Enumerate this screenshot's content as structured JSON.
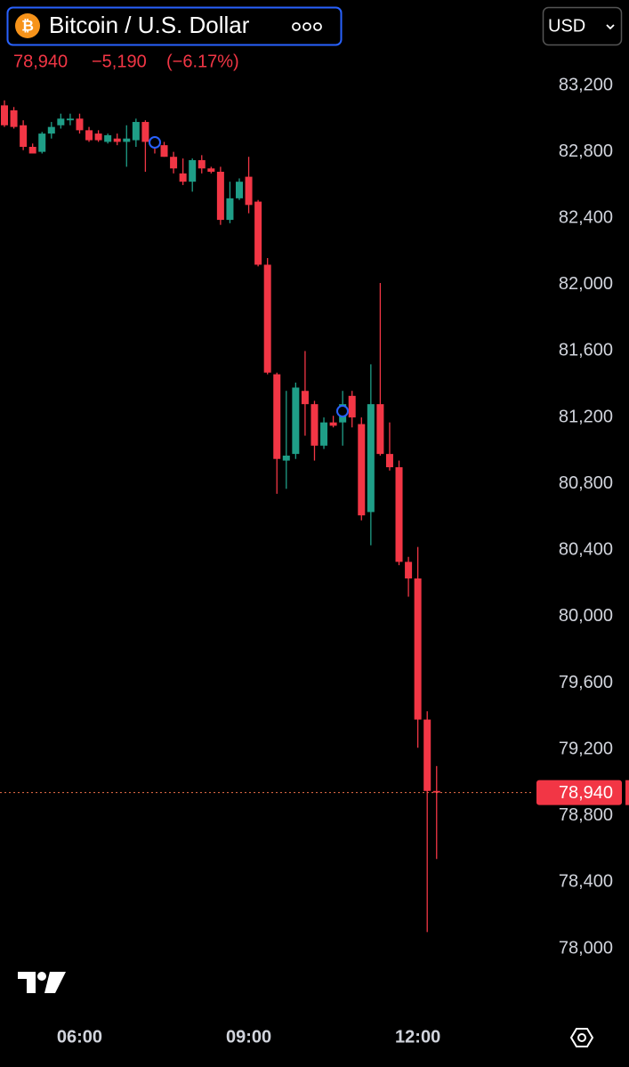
{
  "header": {
    "symbol": "Bitcoin / U.S. Dollar",
    "currency": "USD",
    "price": "78,940",
    "change": "−5,190",
    "change_pct": "(−6.17%)"
  },
  "chart_data": {
    "type": "candlestick",
    "categories": [
      null,
      null,
      null,
      null,
      null,
      null,
      null,
      null,
      "06:00",
      null,
      null,
      null,
      null,
      null,
      null,
      null,
      null,
      null,
      null,
      null,
      null,
      null,
      null,
      null,
      null,
      null,
      "09:00",
      null,
      null,
      null,
      null,
      null,
      null,
      null,
      null,
      null,
      null,
      null,
      null,
      null,
      null,
      null,
      null,
      null,
      "12:00",
      null,
      null
    ],
    "open": [
      83080,
      83050,
      82960,
      82830,
      82800,
      82910,
      82960,
      82990,
      83000,
      82930,
      82910,
      82860,
      82880,
      82860,
      82870,
      82980,
      82860,
      82840,
      82770,
      82670,
      82620,
      82750,
      82700,
      82680,
      82390,
      82520,
      82650,
      82500,
      82120,
      81460,
      80940,
      80980,
      81360,
      81280,
      81030,
      81170,
      81170,
      81330,
      81160,
      80630,
      81280,
      80980,
      80900,
      80330,
      80230,
      79380,
      78950
    ],
    "high": [
      83110,
      83070,
      82990,
      82850,
      82920,
      82980,
      83030,
      83030,
      83030,
      82950,
      82930,
      82910,
      82910,
      82960,
      83000,
      82990,
      82880,
      82860,
      82800,
      82760,
      82760,
      82780,
      82710,
      82710,
      82620,
      82640,
      82770,
      82510,
      82160,
      81470,
      81360,
      81410,
      81600,
      81300,
      81200,
      81210,
      81360,
      81360,
      81200,
      81520,
      82010,
      81170,
      80940,
      80360,
      80420,
      79430,
      79100
    ],
    "low": [
      82950,
      82940,
      82810,
      82790,
      82790,
      82880,
      82940,
      82960,
      82910,
      82860,
      82860,
      82850,
      82840,
      82710,
      82830,
      82680,
      82790,
      82770,
      82670,
      82600,
      82560,
      82670,
      82670,
      82360,
      82370,
      82510,
      82430,
      82110,
      81460,
      80740,
      80770,
      80950,
      81090,
      80940,
      81010,
      81140,
      81030,
      81140,
      80580,
      80430,
      80970,
      80880,
      80310,
      80120,
      79210,
      78100,
      78540
    ],
    "close": [
      82960,
      82950,
      82830,
      82790,
      82910,
      82950,
      83000,
      83000,
      82930,
      82870,
      82870,
      82900,
      82860,
      82880,
      82980,
      82860,
      82830,
      82770,
      82700,
      82620,
      82750,
      82700,
      82680,
      82390,
      82520,
      82620,
      82480,
      82120,
      81470,
      80950,
      80970,
      81380,
      81280,
      81030,
      81170,
      81150,
      81280,
      81200,
      80610,
      81280,
      80980,
      80900,
      80330,
      80230,
      79380,
      78950,
      78940
    ],
    "up_color": "#1f9e87",
    "down_color": "#f23645",
    "last_price": {
      "value": 78940,
      "label": "78,940"
    },
    "ylim": [
      78000,
      83200
    ],
    "yticks": [
      {
        "value": 78000,
        "label": "78,000"
      },
      {
        "value": 78400,
        "label": "78,400"
      },
      {
        "value": 78800,
        "label": "78,800"
      },
      {
        "value": 79200,
        "label": "79,200"
      },
      {
        "value": 79600,
        "label": "79,600"
      },
      {
        "value": 80000,
        "label": "80,000"
      },
      {
        "value": 80400,
        "label": "80,400"
      },
      {
        "value": 80800,
        "label": "80,800"
      },
      {
        "value": 81200,
        "label": "81,200"
      },
      {
        "value": 81600,
        "label": "81,600"
      },
      {
        "value": 82000,
        "label": "82,000"
      },
      {
        "value": 82400,
        "label": "82,400"
      },
      {
        "value": 82800,
        "label": "82,800"
      },
      {
        "value": 83200,
        "label": "83,200"
      }
    ]
  }
}
